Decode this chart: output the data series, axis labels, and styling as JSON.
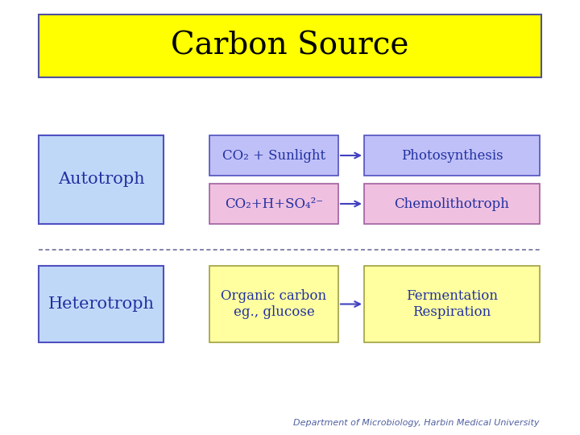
{
  "title": "Carbon Source",
  "title_bg": "#FFFF00",
  "title_border": "#5050A0",
  "title_fontsize": 28,
  "title_color": "#000000",
  "autotroph_label": "Autotroph",
  "heterotroph_label": "Heterotroph",
  "box_left_bg": "#C0D8F8",
  "box_left_border": "#5050C0",
  "row1_mid_label": "CO₂ + Sunlight",
  "row2_mid_label": "CO₂+H+SO₄²⁻",
  "row1_right_label": "Photosynthesis",
  "row2_right_label": "Chemolithotroph",
  "row3_mid_label": "Organic carbon\neg., glucose",
  "row3_right_label": "Fermentation\nRespiration",
  "row1_mid_bg": "#C0C0F8",
  "row1_mid_border": "#5050C0",
  "row1_right_bg": "#C0C0F8",
  "row1_right_border": "#5050C0",
  "row2_mid_bg": "#F0C0E0",
  "row2_mid_border": "#A060A0",
  "row2_right_bg": "#F0C0E0",
  "row2_right_border": "#A060A0",
  "het_mid_bg": "#FFFFA0",
  "het_mid_border": "#A0A040",
  "het_right_bg": "#FFFFA0",
  "het_right_border": "#A0A040",
  "arrow_color": "#4040C0",
  "dashed_line_color": "#7070A0",
  "text_color": "#2030A0",
  "footer_text": "Department of Microbiology, Harbin Medical University",
  "footer_color": "#5060A0",
  "footer_fontsize": 8,
  "bg_color": "#FFFFFF"
}
